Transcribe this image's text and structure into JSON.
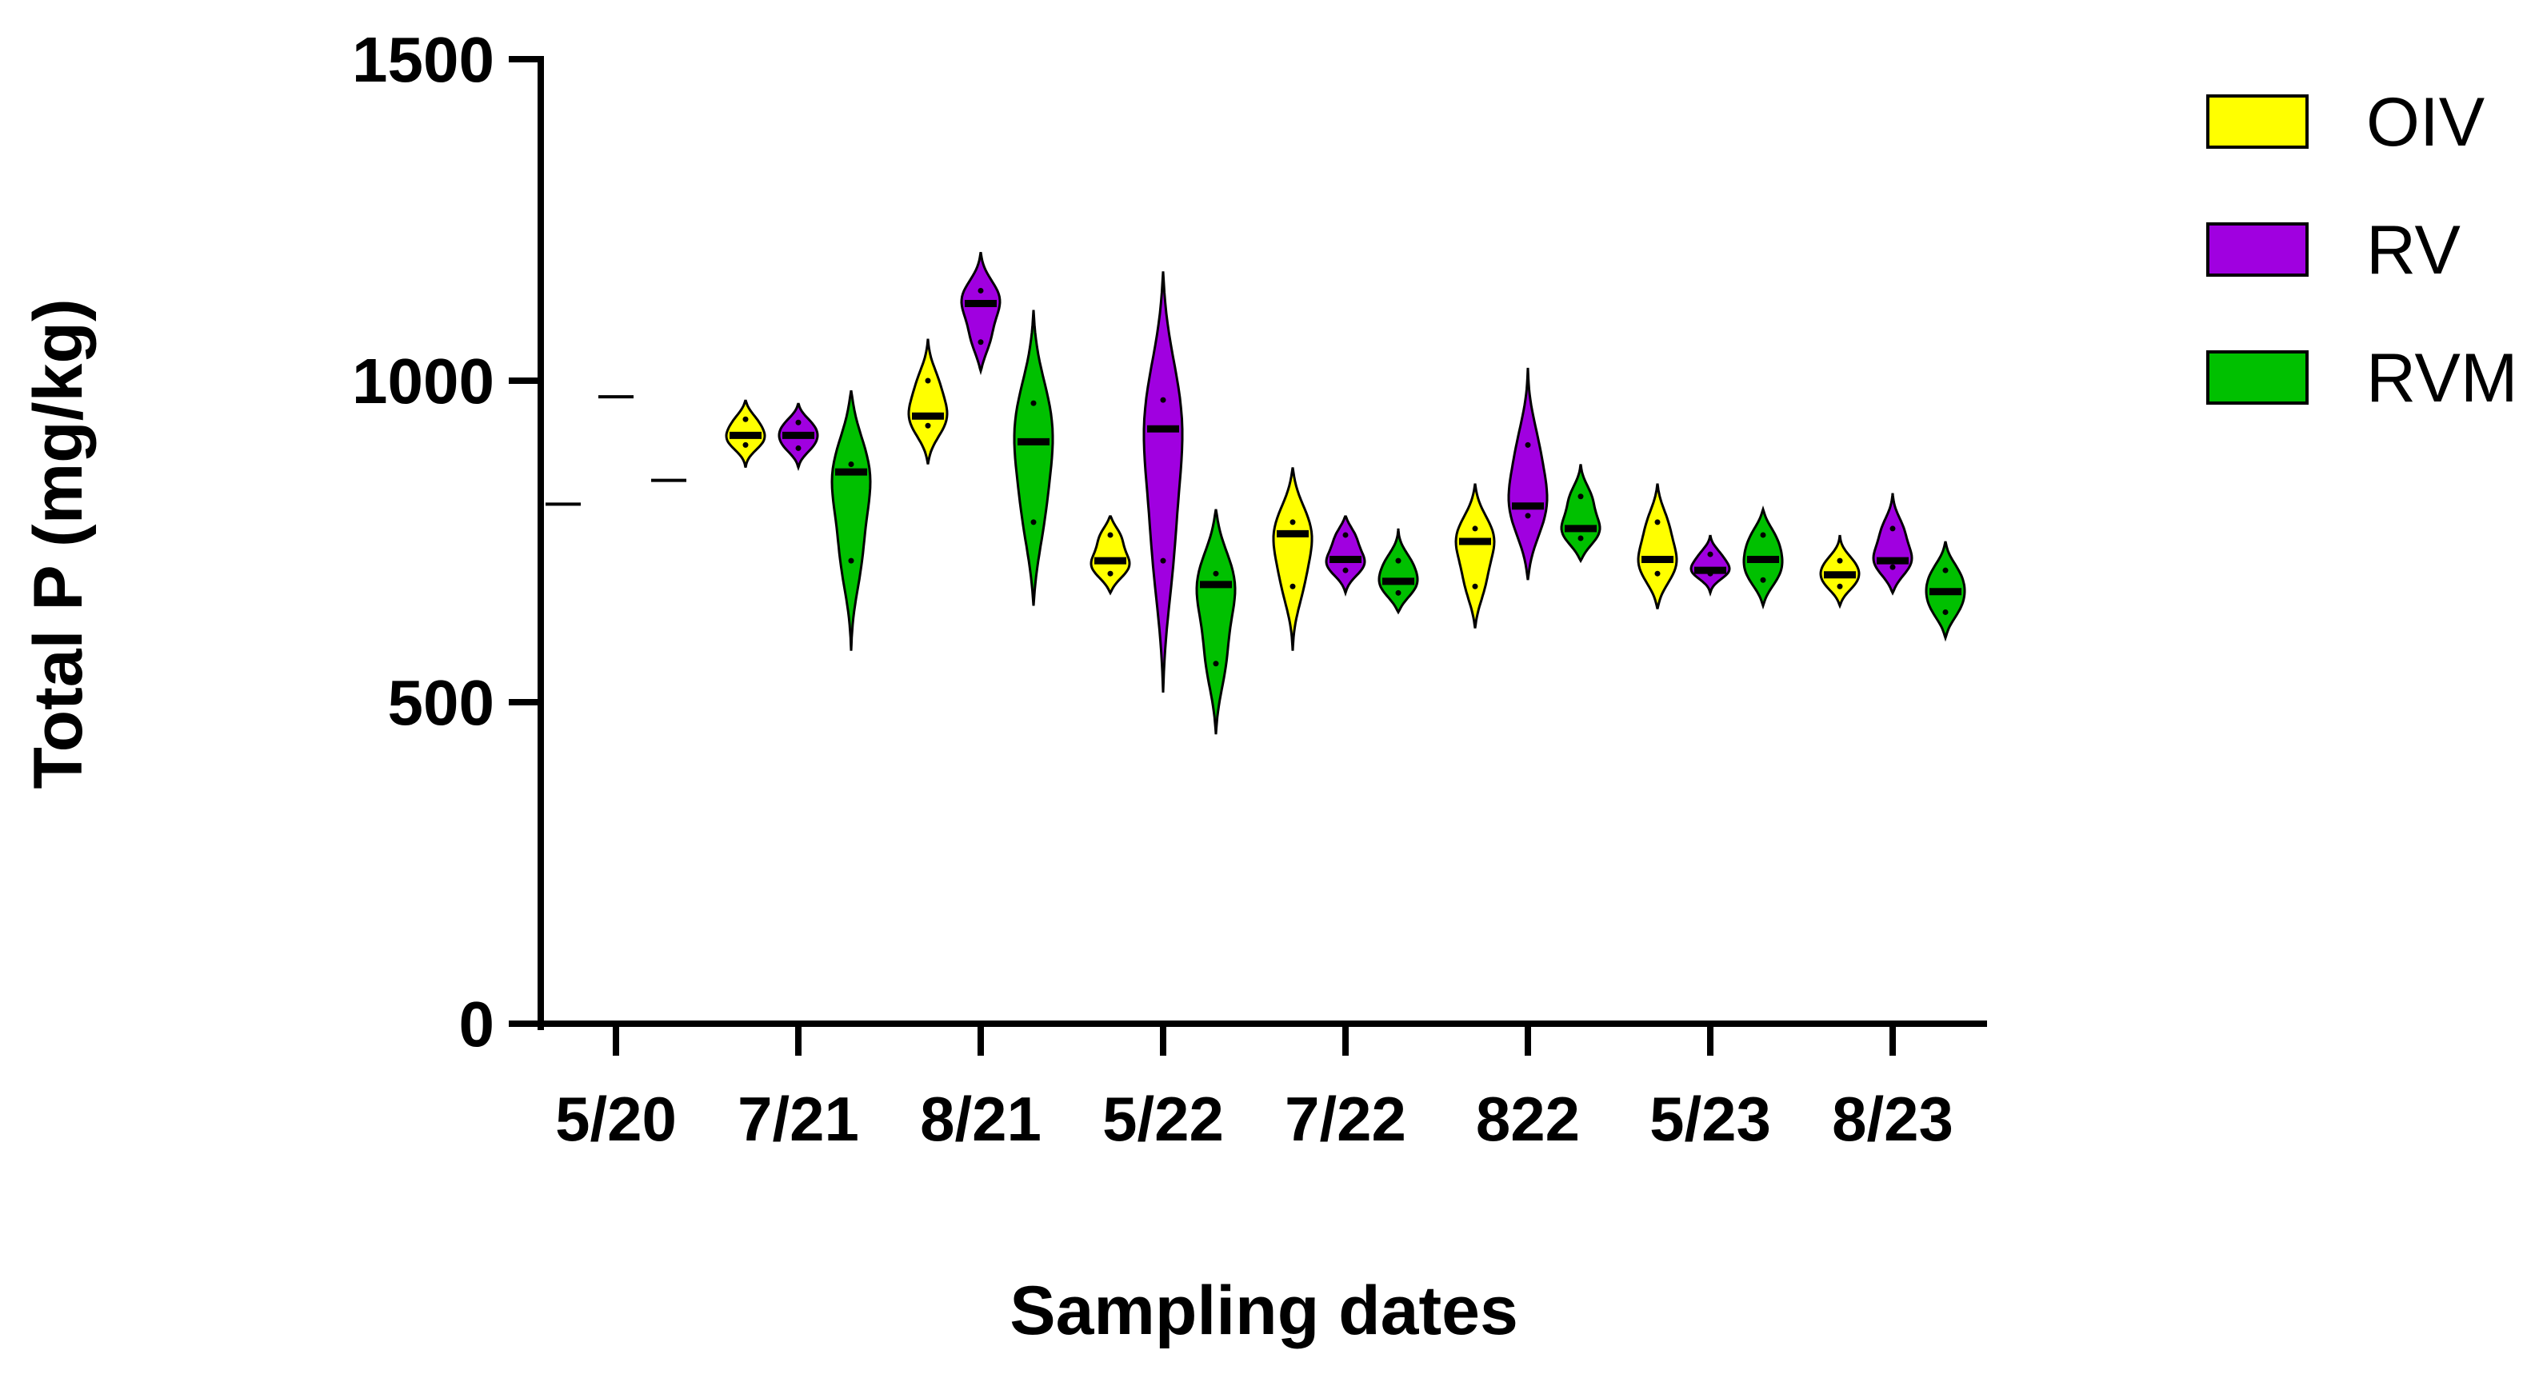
{
  "chart_data": {
    "type": "violin",
    "xlabel": "Sampling dates",
    "ylabel": "Total P (mg/kg)",
    "ylim": [
      0,
      1500
    ],
    "yticks": [
      0,
      500,
      1000,
      1500
    ],
    "grid": false,
    "legend_position": "top-right",
    "categories": [
      "5/20",
      "7/21",
      "8/21",
      "5/22",
      "7/22",
      "822",
      "5/23",
      "8/23"
    ],
    "series": [
      {
        "name": "OIV",
        "color": "#ffff00",
        "groups": [
          {
            "median": 808,
            "min": 805,
            "max": 811,
            "points": [
              808
            ]
          },
          {
            "median": 915,
            "min": 865,
            "max": 970,
            "points": [
              900,
              915,
              940
            ]
          },
          {
            "median": 945,
            "min": 870,
            "max": 1065,
            "points": [
              930,
              945,
              1000
            ]
          },
          {
            "median": 720,
            "min": 670,
            "max": 790,
            "points": [
              700,
              720,
              760
            ]
          },
          {
            "median": 762,
            "min": 580,
            "max": 865,
            "points": [
              680,
              762,
              780
            ]
          },
          {
            "median": 750,
            "min": 615,
            "max": 840,
            "points": [
              680,
              750,
              770
            ]
          },
          {
            "median": 722,
            "min": 645,
            "max": 840,
            "points": [
              700,
              722,
              780
            ]
          },
          {
            "median": 698,
            "min": 650,
            "max": 760,
            "points": [
              680,
              698,
              720
            ]
          }
        ]
      },
      {
        "name": "RV",
        "color": "#a000e0",
        "groups": [
          {
            "median": 975,
            "min": 972,
            "max": 978,
            "points": [
              975
            ]
          },
          {
            "median": 915,
            "min": 865,
            "max": 965,
            "points": [
              895,
              915,
              935
            ]
          },
          {
            "median": 1120,
            "min": 1015,
            "max": 1200,
            "points": [
              1060,
              1120,
              1140
            ]
          },
          {
            "median": 925,
            "min": 515,
            "max": 1170,
            "points": [
              720,
              925,
              970
            ]
          },
          {
            "median": 722,
            "min": 670,
            "max": 790,
            "points": [
              705,
              722,
              760
            ]
          },
          {
            "median": 805,
            "min": 690,
            "max": 1020,
            "points": [
              790,
              805,
              900
            ]
          },
          {
            "median": 705,
            "min": 670,
            "max": 760,
            "points": [
              700,
              705,
              730
            ]
          },
          {
            "median": 720,
            "min": 670,
            "max": 825,
            "points": [
              710,
              720,
              770
            ]
          }
        ]
      },
      {
        "name": "RVM",
        "color": "#00c000",
        "groups": [
          {
            "median": 845,
            "min": 843,
            "max": 847,
            "points": [
              845
            ]
          },
          {
            "median": 858,
            "min": 580,
            "max": 985,
            "points": [
              720,
              858,
              870
            ]
          },
          {
            "median": 905,
            "min": 650,
            "max": 1110,
            "points": [
              780,
              905,
              965
            ]
          },
          {
            "median": 683,
            "min": 450,
            "max": 800,
            "points": [
              560,
              683,
              700
            ]
          },
          {
            "median": 688,
            "min": 640,
            "max": 770,
            "points": [
              670,
              688,
              720
            ]
          },
          {
            "median": 770,
            "min": 720,
            "max": 870,
            "points": [
              755,
              770,
              820
            ]
          },
          {
            "median": 722,
            "min": 650,
            "max": 800,
            "points": [
              690,
              722,
              760
            ]
          },
          {
            "median": 672,
            "min": 600,
            "max": 750,
            "points": [
              640,
              672,
              705
            ]
          }
        ]
      }
    ]
  }
}
